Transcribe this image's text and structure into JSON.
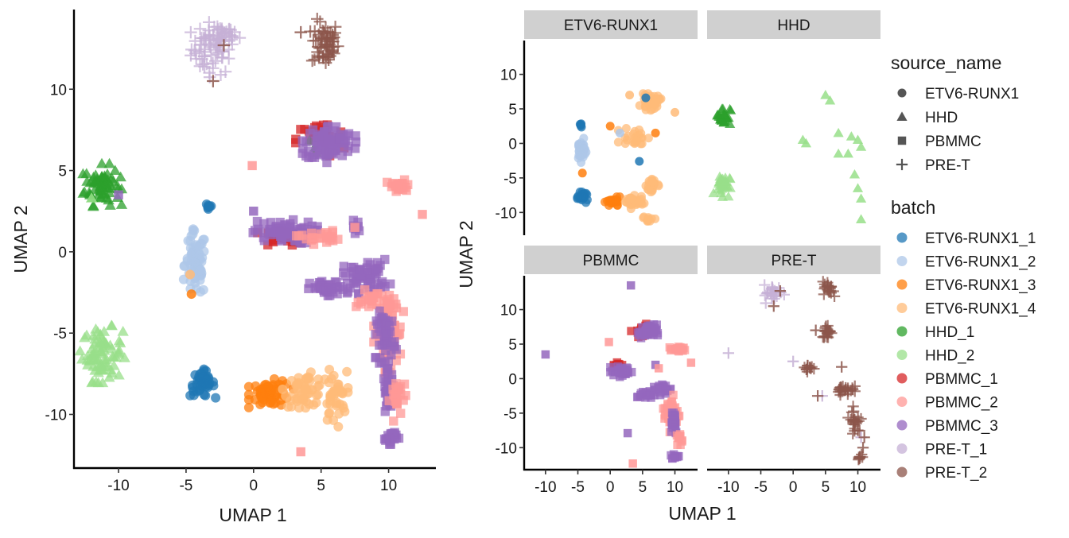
{
  "colors": {
    "ETV6-RUNX1_1": "#1f77b4",
    "ETV6-RUNX1_2": "#aec7e8",
    "ETV6-RUNX1_3": "#ff7f0e",
    "ETV6-RUNX1_4": "#ffbb78",
    "HHD_1": "#2ca02c",
    "HHD_2": "#98df8a",
    "PBMMC_1": "#d62728",
    "PBMMC_2": "#ff9896",
    "PBMMC_3": "#9467bd",
    "PRE-T_1": "#c5b0d5",
    "PRE-T_2": "#8c564b",
    "strip_fill": "#d0d0d0"
  },
  "shapes": {
    "ETV6-RUNX1": "circle",
    "HHD": "triangle",
    "PBMMC": "square",
    "PRE-T": "plus"
  },
  "legend": {
    "source_title": "source_name",
    "source_items": [
      "ETV6-RUNX1",
      "HHD",
      "PBMMC",
      "PRE-T"
    ],
    "batch_title": "batch",
    "batch_items": [
      "ETV6-RUNX1_1",
      "ETV6-RUNX1_2",
      "ETV6-RUNX1_3",
      "ETV6-RUNX1_4",
      "HHD_1",
      "HHD_2",
      "PBMMC_1",
      "PBMMC_2",
      "PBMMC_3",
      "PRE-T_1",
      "PRE-T_2"
    ]
  },
  "chart_data": [
    {
      "type": "scatter",
      "title": "",
      "xlabel": "UMAP 1",
      "ylabel": "UMAP 2",
      "xlim": [
        -13.3,
        13.5
      ],
      "ylim": [
        -13.3,
        14.9
      ],
      "xticks": [
        -10,
        -5,
        0,
        5,
        10
      ],
      "yticks": [
        10,
        5,
        0,
        -5,
        -10
      ],
      "xtick_labels": [
        "-10",
        "-5",
        "0",
        "5",
        "10"
      ],
      "ytick_labels": [
        "10",
        "5",
        "0",
        "-5",
        "-10"
      ],
      "grid": false,
      "legend": "right",
      "clusters": [
        {
          "batch": "PRE-T_1",
          "source": "PRE-T",
          "x": -3.0,
          "y": 12.5,
          "rx": 1.6,
          "ry": 1.6,
          "n": 70
        },
        {
          "batch": "PRE-T_1",
          "source": "PRE-T",
          "x": -2.3,
          "y": 13.3,
          "rx": 1.2,
          "ry": 0.5,
          "n": 20
        },
        {
          "batch": "PRE-T_2",
          "source": "PRE-T",
          "x": 5.3,
          "y": 12.8,
          "rx": 1.0,
          "ry": 1.4,
          "n": 60
        },
        {
          "batch": "HHD_1",
          "source": "HHD",
          "x": -11.2,
          "y": 4.1,
          "rx": 1.3,
          "ry": 1.2,
          "n": 70
        },
        {
          "batch": "HHD_2",
          "source": "HHD",
          "x": -11.2,
          "y": -6.3,
          "rx": 1.5,
          "ry": 1.6,
          "n": 80
        },
        {
          "batch": "ETV6-RUNX1_1",
          "source": "ETV6-RUNX1",
          "x": -3.8,
          "y": -8.1,
          "rx": 0.9,
          "ry": 0.8,
          "n": 45
        },
        {
          "batch": "ETV6-RUNX1_1",
          "source": "ETV6-RUNX1",
          "x": -3.3,
          "y": 2.8,
          "rx": 0.25,
          "ry": 0.3,
          "n": 8
        },
        {
          "batch": "ETV6-RUNX1_2",
          "source": "ETV6-RUNX1",
          "x": -4.3,
          "y": -0.8,
          "rx": 0.8,
          "ry": 2.0,
          "n": 70
        },
        {
          "batch": "ETV6-RUNX1_3",
          "source": "ETV6-RUNX1",
          "x": 1.3,
          "y": -8.7,
          "rx": 1.5,
          "ry": 0.8,
          "n": 60
        },
        {
          "batch": "ETV6-RUNX1_4",
          "source": "ETV6-RUNX1",
          "x": 3.8,
          "y": -8.5,
          "rx": 1.5,
          "ry": 1.0,
          "n": 50
        },
        {
          "batch": "ETV6-RUNX1_4",
          "source": "ETV6-RUNX1",
          "x": 6.0,
          "y": -9.0,
          "rx": 0.9,
          "ry": 1.6,
          "n": 40
        },
        {
          "batch": "PBMMC_1",
          "source": "PBMMC",
          "x": 5.0,
          "y": 6.9,
          "rx": 1.8,
          "ry": 1.1,
          "n": 40
        },
        {
          "batch": "HHD_1",
          "source": "HHD",
          "x": 4.8,
          "y": 6.5,
          "rx": 1.2,
          "ry": 0.8,
          "n": 12
        },
        {
          "batch": "PBMMC_3",
          "source": "PBMMC",
          "x": 5.6,
          "y": 6.7,
          "rx": 1.8,
          "ry": 1.1,
          "n": 90
        },
        {
          "batch": "PBMMC_1",
          "source": "PBMMC",
          "x": 2.5,
          "y": 0.9,
          "rx": 2.0,
          "ry": 0.5,
          "n": 30
        },
        {
          "batch": "PBMMC_3",
          "source": "PBMMC",
          "x": 2.2,
          "y": 1.2,
          "rx": 2.3,
          "ry": 0.7,
          "n": 70
        },
        {
          "batch": "PBMMC_2",
          "source": "PBMMC",
          "x": 4.8,
          "y": 0.9,
          "rx": 1.5,
          "ry": 0.4,
          "n": 25
        },
        {
          "batch": "PBMMC_2",
          "source": "PBMMC",
          "x": 10.8,
          "y": 4.0,
          "rx": 0.9,
          "ry": 0.4,
          "n": 25
        },
        {
          "batch": "PBMMC_3",
          "source": "PBMMC",
          "x": 5.5,
          "y": -2.3,
          "rx": 1.3,
          "ry": 0.5,
          "n": 40
        },
        {
          "batch": "PBMMC_3",
          "source": "PBMMC",
          "x": 8.3,
          "y": -1.5,
          "rx": 1.7,
          "ry": 1.0,
          "n": 60
        },
        {
          "batch": "PBMMC_3",
          "source": "PBMMC",
          "x": 7.5,
          "y": 1.5,
          "rx": 0.3,
          "ry": 0.4,
          "n": 8
        },
        {
          "batch": "PBMMC_2",
          "source": "PBMMC",
          "x": 10.0,
          "y": -5.0,
          "rx": 1.0,
          "ry": 2.2,
          "n": 80
        },
        {
          "batch": "PBMMC_3",
          "source": "PBMMC",
          "x": 9.8,
          "y": -5.2,
          "rx": 0.7,
          "ry": 1.5,
          "n": 50
        },
        {
          "batch": "PBMMC_3",
          "source": "PBMMC",
          "x": 10.0,
          "y": -8.5,
          "rx": 0.4,
          "ry": 1.2,
          "n": 35
        },
        {
          "batch": "PBMMC_2",
          "source": "PBMMC",
          "x": 10.7,
          "y": -9.0,
          "rx": 0.6,
          "ry": 1.3,
          "n": 25
        },
        {
          "batch": "PBMMC_3",
          "source": "PBMMC",
          "x": 10.1,
          "y": -11.4,
          "rx": 0.6,
          "ry": 0.4,
          "n": 20
        },
        {
          "batch": "PBMMC_2",
          "source": "PBMMC",
          "x": 9.0,
          "y": -3.0,
          "rx": 1.4,
          "ry": 0.6,
          "n": 25
        }
      ],
      "outliers": [
        {
          "batch": "PBMMC_2",
          "source": "PBMMC",
          "x": -0.1,
          "y": 5.3
        },
        {
          "batch": "PBMMC_2",
          "source": "PBMMC",
          "x": 12.5,
          "y": 2.3
        },
        {
          "batch": "PBMMC_2",
          "source": "PBMMC",
          "x": 3.5,
          "y": -12.3
        },
        {
          "batch": "PBMMC_2",
          "source": "PBMMC",
          "x": 7.5,
          "y": 1.5
        },
        {
          "batch": "PBMMC_3",
          "source": "PBMMC",
          "x": -10.0,
          "y": 3.5
        },
        {
          "batch": "PBMMC_3",
          "source": "PBMMC",
          "x": 0.0,
          "y": 2.5
        },
        {
          "batch": "PRE-T_2",
          "source": "PRE-T",
          "x": -2.2,
          "y": 12.7
        },
        {
          "batch": "PRE-T_2",
          "source": "PRE-T",
          "x": -3.0,
          "y": 10.5
        },
        {
          "batch": "PRE-T_2",
          "source": "PRE-T",
          "x": 3.5,
          "y": 13.5
        },
        {
          "batch": "ETV6-RUNX1_4",
          "source": "ETV6-RUNX1",
          "x": -4.7,
          "y": -1.4
        },
        {
          "batch": "ETV6-RUNX1_3",
          "source": "ETV6-RUNX1",
          "x": -4.6,
          "y": -2.6
        },
        {
          "batch": "HHD_2",
          "source": "HHD",
          "x": -12.0,
          "y": 3.3
        }
      ]
    },
    {
      "type": "scatter",
      "facet": "ETV6-RUNX1",
      "xlim": [
        -13.3,
        13.5
      ],
      "ylim": [
        -13.3,
        14.9
      ],
      "clusters": [
        {
          "batch": "ETV6-RUNX1_2",
          "source": "ETV6-RUNX1",
          "x": -4.5,
          "y": -1.0,
          "rx": 0.7,
          "ry": 1.6,
          "n": 40
        },
        {
          "batch": "ETV6-RUNX1_1",
          "source": "ETV6-RUNX1",
          "x": -4.5,
          "y": 2.8,
          "rx": 0.3,
          "ry": 0.4,
          "n": 6
        },
        {
          "batch": "ETV6-RUNX1_1",
          "source": "ETV6-RUNX1",
          "x": -4.2,
          "y": -7.8,
          "rx": 0.8,
          "ry": 0.7,
          "n": 25
        },
        {
          "batch": "ETV6-RUNX1_3",
          "source": "ETV6-RUNX1",
          "x": 0.5,
          "y": -8.5,
          "rx": 1.2,
          "ry": 0.7,
          "n": 25
        },
        {
          "batch": "ETV6-RUNX1_4",
          "source": "ETV6-RUNX1",
          "x": 3.5,
          "y": -8.5,
          "rx": 1.6,
          "ry": 0.9,
          "n": 35
        },
        {
          "batch": "ETV6-RUNX1_4",
          "source": "ETV6-RUNX1",
          "x": 6.5,
          "y": -6.0,
          "rx": 0.9,
          "ry": 1.5,
          "n": 25
        },
        {
          "batch": "ETV6-RUNX1_4",
          "source": "ETV6-RUNX1",
          "x": 6.2,
          "y": 6.0,
          "rx": 1.5,
          "ry": 1.1,
          "n": 35
        },
        {
          "batch": "ETV6-RUNX1_4",
          "source": "ETV6-RUNX1",
          "x": 4.0,
          "y": 1.0,
          "rx": 2.5,
          "ry": 1.4,
          "n": 25
        },
        {
          "batch": "ETV6-RUNX1_4",
          "source": "ETV6-RUNX1",
          "x": 6.0,
          "y": -11.0,
          "rx": 1.0,
          "ry": 0.4,
          "n": 10
        }
      ],
      "outliers": [
        {
          "batch": "ETV6-RUNX1_1",
          "source": "ETV6-RUNX1",
          "x": 4.5,
          "y": -2.6
        },
        {
          "batch": "ETV6-RUNX1_1",
          "source": "ETV6-RUNX1",
          "x": 5.5,
          "y": 6.6
        },
        {
          "batch": "ETV6-RUNX1_3",
          "source": "ETV6-RUNX1",
          "x": -4.3,
          "y": -4.3
        },
        {
          "batch": "ETV6-RUNX1_3",
          "source": "ETV6-RUNX1",
          "x": 0.0,
          "y": 2.5
        },
        {
          "batch": "ETV6-RUNX1_3",
          "source": "ETV6-RUNX1",
          "x": 7.0,
          "y": 1.5
        },
        {
          "batch": "ETV6-RUNX1_4",
          "source": "ETV6-RUNX1",
          "x": 10.0,
          "y": 4.5
        },
        {
          "batch": "ETV6-RUNX1_4",
          "source": "ETV6-RUNX1",
          "x": 3.0,
          "y": 7.0
        },
        {
          "batch": "ETV6-RUNX1_2",
          "source": "ETV6-RUNX1",
          "x": 1.5,
          "y": 1.5
        }
      ]
    },
    {
      "type": "scatter",
      "facet": "HHD",
      "xlim": [
        -13.3,
        13.5
      ],
      "ylim": [
        -13.3,
        14.9
      ],
      "clusters": [
        {
          "batch": "HHD_1",
          "source": "HHD",
          "x": -10.8,
          "y": 4.0,
          "rx": 1.1,
          "ry": 1.3,
          "n": 30
        },
        {
          "batch": "HHD_2",
          "source": "HHD",
          "x": -11.0,
          "y": -6.0,
          "rx": 1.2,
          "ry": 1.6,
          "n": 30
        }
      ],
      "outliers": [
        {
          "batch": "HHD_2",
          "source": "HHD",
          "x": 5.0,
          "y": 7.0
        },
        {
          "batch": "HHD_2",
          "source": "HHD",
          "x": 5.7,
          "y": 6.2
        },
        {
          "batch": "HHD_2",
          "source": "HHD",
          "x": 1.5,
          "y": 0.5
        },
        {
          "batch": "HHD_2",
          "source": "HHD",
          "x": 2.0,
          "y": 0.0
        },
        {
          "batch": "HHD_2",
          "source": "HHD",
          "x": 7.0,
          "y": 1.5
        },
        {
          "batch": "HHD_2",
          "source": "HHD",
          "x": 9.0,
          "y": 1.0
        },
        {
          "batch": "HHD_2",
          "source": "HHD",
          "x": 10.0,
          "y": 0.5
        },
        {
          "batch": "HHD_2",
          "source": "HHD",
          "x": 10.5,
          "y": -0.5
        },
        {
          "batch": "HHD_2",
          "source": "HHD",
          "x": 8.5,
          "y": -1.5
        },
        {
          "batch": "HHD_2",
          "source": "HHD",
          "x": 7.0,
          "y": -1.5
        },
        {
          "batch": "HHD_2",
          "source": "HHD",
          "x": 9.5,
          "y": -4.5
        },
        {
          "batch": "HHD_2",
          "source": "HHD",
          "x": 10.0,
          "y": -6.5
        },
        {
          "batch": "HHD_2",
          "source": "HHD",
          "x": 10.5,
          "y": -8.0
        },
        {
          "batch": "HHD_2",
          "source": "HHD",
          "x": 10.5,
          "y": -11.0
        }
      ]
    },
    {
      "type": "scatter",
      "facet": "PBMMC",
      "xlim": [
        -13.3,
        13.5
      ],
      "ylim": [
        -13.3,
        14.9
      ],
      "clusters": [
        {
          "batch": "PBMMC_1",
          "source": "PBMMC",
          "x": 5.0,
          "y": 6.9,
          "rx": 1.6,
          "ry": 1.0,
          "n": 25
        },
        {
          "batch": "PBMMC_3",
          "source": "PBMMC",
          "x": 5.8,
          "y": 6.8,
          "rx": 1.4,
          "ry": 1.0,
          "n": 40
        },
        {
          "batch": "PBMMC_2",
          "source": "PBMMC",
          "x": 10.5,
          "y": 4.2,
          "rx": 1.2,
          "ry": 0.4,
          "n": 18
        },
        {
          "batch": "PBMMC_1",
          "source": "PBMMC",
          "x": 1.0,
          "y": 2.0,
          "rx": 0.8,
          "ry": 0.5,
          "n": 12
        },
        {
          "batch": "PBMMC_3",
          "source": "PBMMC",
          "x": 2.0,
          "y": 1.0,
          "rx": 1.8,
          "ry": 0.7,
          "n": 35
        },
        {
          "batch": "PBMMC_3",
          "source": "PBMMC",
          "x": 5.5,
          "y": -2.3,
          "rx": 1.2,
          "ry": 0.5,
          "n": 20
        },
        {
          "batch": "PBMMC_3",
          "source": "PBMMC",
          "x": 8.0,
          "y": -1.5,
          "rx": 1.5,
          "ry": 0.8,
          "n": 25
        },
        {
          "batch": "PBMMC_2",
          "source": "PBMMC",
          "x": 9.5,
          "y": -5.0,
          "rx": 1.2,
          "ry": 2.5,
          "n": 40
        },
        {
          "batch": "PBMMC_3",
          "source": "PBMMC",
          "x": 9.8,
          "y": -6.0,
          "rx": 0.6,
          "ry": 2.0,
          "n": 30
        },
        {
          "batch": "PBMMC_3",
          "source": "PBMMC",
          "x": 10.0,
          "y": -11.3,
          "rx": 0.7,
          "ry": 0.4,
          "n": 10
        },
        {
          "batch": "PBMMC_2",
          "source": "PBMMC",
          "x": 10.8,
          "y": -8.5,
          "rx": 0.5,
          "ry": 1.0,
          "n": 12
        }
      ],
      "outliers": [
        {
          "batch": "PBMMC_3",
          "source": "PBMMC",
          "x": -10.0,
          "y": 3.5
        },
        {
          "batch": "PBMMC_3",
          "source": "PBMMC",
          "x": 3.2,
          "y": 13.5
        },
        {
          "batch": "PBMMC_3",
          "source": "PBMMC",
          "x": 2.7,
          "y": -7.9
        },
        {
          "batch": "PBMMC_3",
          "source": "PBMMC",
          "x": 7.0,
          "y": 2.0
        },
        {
          "batch": "PBMMC_2",
          "source": "PBMMC",
          "x": -0.2,
          "y": 5.3
        },
        {
          "batch": "PBMMC_2",
          "source": "PBMMC",
          "x": 12.5,
          "y": 2.3
        },
        {
          "batch": "PBMMC_2",
          "source": "PBMMC",
          "x": 3.5,
          "y": -12.3
        },
        {
          "batch": "PBMMC_2",
          "source": "PBMMC",
          "x": 7.5,
          "y": 1.5
        }
      ]
    },
    {
      "type": "scatter",
      "facet": "PRE-T",
      "xlim": [
        -13.3,
        13.5
      ],
      "ylim": [
        -13.3,
        14.9
      ],
      "clusters": [
        {
          "batch": "PRE-T_1",
          "source": "PRE-T",
          "x": -3.0,
          "y": 12.3,
          "rx": 1.5,
          "ry": 1.3,
          "n": 25
        },
        {
          "batch": "PRE-T_2",
          "source": "PRE-T",
          "x": 5.5,
          "y": 13.0,
          "rx": 0.8,
          "ry": 1.0,
          "n": 20
        },
        {
          "batch": "PRE-T_2",
          "source": "PRE-T",
          "x": 5.3,
          "y": 6.8,
          "rx": 0.8,
          "ry": 1.0,
          "n": 20
        },
        {
          "batch": "PRE-T_2",
          "source": "PRE-T",
          "x": 2.5,
          "y": 1.5,
          "rx": 1.0,
          "ry": 0.6,
          "n": 12
        },
        {
          "batch": "PRE-T_2",
          "source": "PRE-T",
          "x": 8.0,
          "y": -1.5,
          "rx": 1.4,
          "ry": 0.8,
          "n": 25
        },
        {
          "batch": "PRE-T_2",
          "source": "PRE-T",
          "x": 9.5,
          "y": -6.0,
          "rx": 0.9,
          "ry": 1.8,
          "n": 22
        },
        {
          "batch": "PRE-T_2",
          "source": "PRE-T",
          "x": 10.3,
          "y": -11.3,
          "rx": 0.5,
          "ry": 0.4,
          "n": 8
        }
      ],
      "outliers": [
        {
          "batch": "PRE-T_1",
          "source": "PRE-T",
          "x": -10.0,
          "y": 3.7
        },
        {
          "batch": "PRE-T_1",
          "source": "PRE-T",
          "x": 0.0,
          "y": 2.5
        },
        {
          "batch": "PRE-T_1",
          "source": "PRE-T",
          "x": 10.5,
          "y": -8.5
        },
        {
          "batch": "PRE-T_1",
          "source": "PRE-T",
          "x": 4.5,
          "y": -2.5
        },
        {
          "batch": "PRE-T_2",
          "source": "PRE-T",
          "x": -2.0,
          "y": 12.7
        },
        {
          "batch": "PRE-T_2",
          "source": "PRE-T",
          "x": -3.0,
          "y": 10.5
        },
        {
          "batch": "PRE-T_2",
          "source": "PRE-T",
          "x": 3.5,
          "y": 7.0
        },
        {
          "batch": "PRE-T_2",
          "source": "PRE-T",
          "x": 7.5,
          "y": 1.7
        },
        {
          "batch": "PRE-T_2",
          "source": "PRE-T",
          "x": 3.8,
          "y": -2.5
        },
        {
          "batch": "PRE-T_2",
          "source": "PRE-T",
          "x": 10.0,
          "y": -7.5
        },
        {
          "batch": "PRE-T_2",
          "source": "PRE-T",
          "x": 11.0,
          "y": -8.5
        },
        {
          "batch": "PRE-T_2",
          "source": "PRE-T",
          "x": 10.8,
          "y": -10.0
        }
      ]
    }
  ],
  "facet_axes": {
    "xlabel": "UMAP 1",
    "ylabel": "UMAP 2",
    "xticks": [
      -10,
      -5,
      0,
      5,
      10
    ],
    "yticks": [
      10,
      5,
      0,
      -5,
      -10
    ],
    "xtick_labels": [
      "-10",
      "-5",
      "0",
      "5",
      "10"
    ],
    "ytick_labels": [
      "10",
      "5",
      "0",
      "-5",
      "-10"
    ]
  }
}
